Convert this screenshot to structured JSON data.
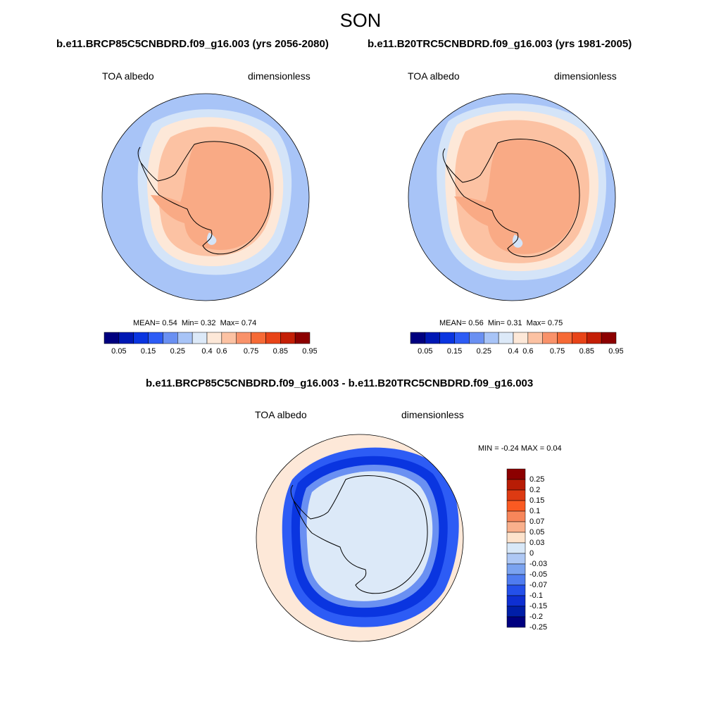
{
  "figure": {
    "title": "SON"
  },
  "panels": [
    {
      "case_title": "b.e11.BRCP85C5CNBDRD.f09_g16.003 (yrs 2056-2080)",
      "left_label": "TOA albedo",
      "right_label": "dimensionless",
      "stats": {
        "mean_label": "MEAN=",
        "mean": "0.54",
        "min_label": "Min=",
        "min": "0.32",
        "max_label": "Max=",
        "max": "0.74"
      }
    },
    {
      "case_title": "b.e11.B20TRC5CNBDRD.f09_g16.003 (yrs 1981-2005)",
      "left_label": "TOA albedo",
      "right_label": "dimensionless",
      "stats": {
        "mean_label": "MEAN=",
        "mean": "0.56",
        "min_label": "Min=",
        "min": "0.31",
        "max_label": "Max=",
        "max": "0.75"
      }
    }
  ],
  "diff_panel": {
    "case_title": "b.e11.BRCP85C5CNBDRD.f09_g16.003 - b.e11.B20TRC5CNBDRD.f09_g16.003",
    "left_label": "TOA albedo",
    "right_label": "dimensionless",
    "minmax_text": "MIN =  -0.24 MAX =   0.04"
  },
  "colorbar_top": {
    "colors": [
      "#00007f",
      "#0018b4",
      "#0a35e0",
      "#2d5cf5",
      "#6a90f2",
      "#a8c4f7",
      "#dce9f8",
      "#fde8d8",
      "#fcc2a3",
      "#f9926a",
      "#f66a36",
      "#e84418",
      "#c41f06",
      "#8c0000"
    ],
    "tick_labels": [
      "0.05",
      "0.15",
      "0.25",
      "0.4",
      "0.6",
      "0.75",
      "0.85",
      "0.95"
    ]
  },
  "colorbar_diff": {
    "colors": [
      "#8c0000",
      "#b81c05",
      "#dd3a12",
      "#fa5a22",
      "#f7865a",
      "#f9b08c",
      "#fde3cc",
      "#d8e8f8",
      "#aec8f5",
      "#7ba3f0",
      "#4f7cf0",
      "#2450ea",
      "#0e2fd2",
      "#001ea8",
      "#000080"
    ],
    "tick_labels": [
      "0.25",
      "0.2",
      "0.15",
      "0.1",
      "0.07",
      "0.05",
      "0.03",
      "0",
      "-0.03",
      "-0.05",
      "-0.07",
      "-0.1",
      "-0.15",
      "-0.2",
      "-0.25"
    ]
  }
}
